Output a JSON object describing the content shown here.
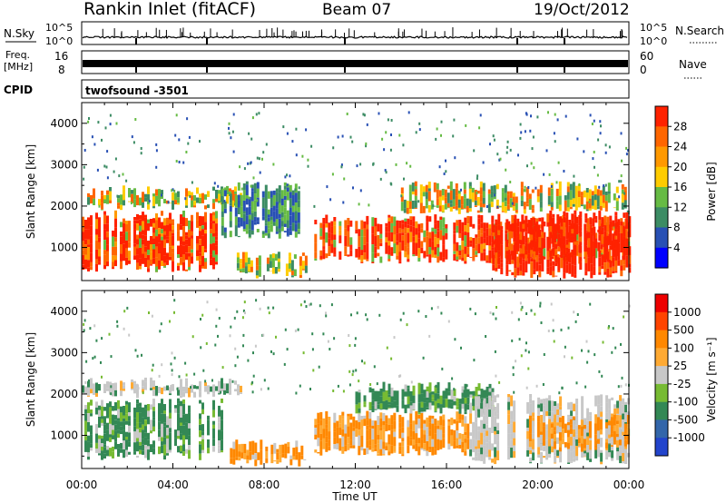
{
  "header": {
    "station": "Rankin Inlet (fitACF)",
    "beam": "Beam 07",
    "date": "19/Oct/2012"
  },
  "strips": {
    "nsky_label": "N.Sky",
    "nsky_ticks": [
      "10^5",
      "10^0"
    ],
    "nsearch_label": "N.Search",
    "nsearch_ticks": [
      "10^5",
      "10^0"
    ],
    "freq_label_line1": "Freq.",
    "freq_label_line2": "[MHz]",
    "freq_ticks": [
      "16",
      "8"
    ],
    "nave_label": "Nave",
    "nave_ticks": [
      "60",
      "0"
    ],
    "cpid_label": "CPID",
    "cpid_value": "twofsound -3501"
  },
  "chart_data": [
    {
      "type": "heatmap",
      "panel": "power",
      "ylabel": "Slant Range [km]",
      "yticks": [
        "1000",
        "2000",
        "3000",
        "4000"
      ],
      "ylim": [
        200,
        4500
      ],
      "xlim_hours": [
        0,
        24
      ],
      "colorbar_label": "Power [dB]",
      "colorbar_ticks": [
        "4",
        "8",
        "12",
        "16",
        "20",
        "24",
        "28"
      ],
      "colorbar_colors": [
        "#0000ff",
        "#2850b4",
        "#3c8c64",
        "#66bb44",
        "#ffcc00",
        "#ff9900",
        "#ff6600",
        "#ff2200"
      ],
      "echo_regions": [
        {
          "t0": 0.0,
          "t1": 6.2,
          "r0": 400,
          "r1": 1900,
          "level": "high"
        },
        {
          "t0": 0.0,
          "t1": 7.0,
          "r0": 1900,
          "r1": 2500,
          "level": "mid"
        },
        {
          "t0": 6.8,
          "t1": 9.8,
          "r0": 250,
          "r1": 900,
          "level": "mid"
        },
        {
          "t0": 6.0,
          "t1": 9.5,
          "r0": 1200,
          "r1": 2600,
          "level": "low"
        },
        {
          "t0": 10.2,
          "t1": 24.0,
          "r0": 600,
          "r1": 1800,
          "level": "high"
        },
        {
          "t0": 14.0,
          "t1": 24.0,
          "r0": 1800,
          "r1": 2600,
          "level": "mid"
        },
        {
          "t0": 18.0,
          "t1": 24.0,
          "r0": 250,
          "r1": 1900,
          "level": "vhigh"
        }
      ]
    },
    {
      "type": "heatmap",
      "panel": "velocity",
      "ylabel": "Slant Range [km]",
      "yticks": [
        "1000",
        "2000",
        "3000",
        "4000"
      ],
      "ylim": [
        200,
        4500
      ],
      "xlim_hours": [
        0,
        24
      ],
      "colorbar_label": "Velocity [m s⁻¹]",
      "colorbar_ticks": [
        "1000",
        "500",
        "100",
        "25",
        "-25",
        "-100",
        "-500",
        "-1000"
      ],
      "colorbar_colors": [
        "#2244cc",
        "#3366aa",
        "#338855",
        "#77bb33",
        "#c8c8c8",
        "#ffaa33",
        "#ff8800",
        "#ff4400",
        "#ee0000"
      ],
      "echo_regions": [
        {
          "t0": 0.0,
          "t1": 6.2,
          "r0": 400,
          "r1": 1900,
          "level": "green"
        },
        {
          "t0": 0.0,
          "t1": 7.0,
          "r0": 1900,
          "r1": 2400,
          "level": "grey"
        },
        {
          "t0": 6.5,
          "t1": 9.8,
          "r0": 250,
          "r1": 900,
          "level": "orange"
        },
        {
          "t0": 10.2,
          "t1": 17.0,
          "r0": 500,
          "r1": 1600,
          "level": "orange"
        },
        {
          "t0": 12.0,
          "t1": 18.0,
          "r0": 1500,
          "r1": 2300,
          "level": "green"
        },
        {
          "t0": 17.0,
          "t1": 24.0,
          "r0": 300,
          "r1": 2000,
          "level": "grey"
        },
        {
          "t0": 19.5,
          "t1": 24.0,
          "r0": 600,
          "r1": 1500,
          "level": "orange"
        }
      ]
    }
  ],
  "xaxis": {
    "ticks": [
      "00:00",
      "04:00",
      "08:00",
      "12:00",
      "16:00",
      "20:00",
      "00:00"
    ],
    "label": "Time UT"
  }
}
